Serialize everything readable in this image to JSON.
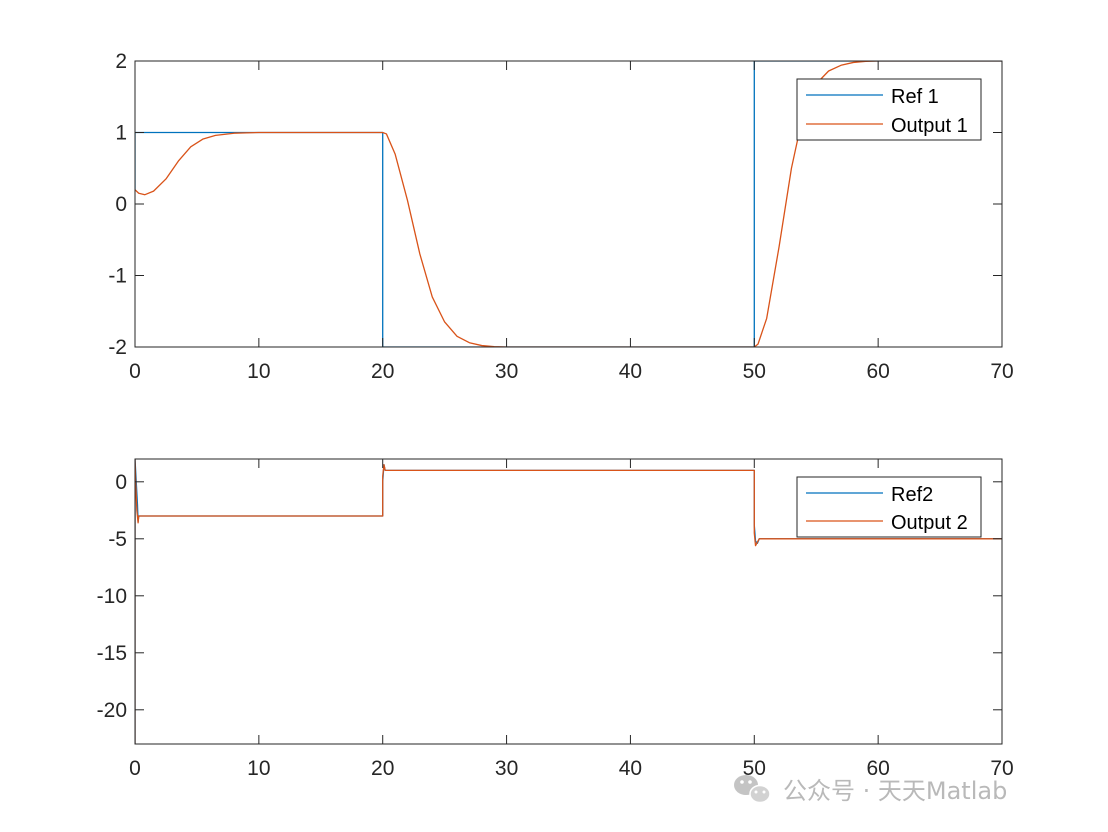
{
  "chart_data": [
    {
      "type": "line",
      "xlim": [
        0,
        70
      ],
      "ylim": [
        -2,
        2
      ],
      "xticks": [
        0,
        10,
        20,
        30,
        40,
        50,
        60,
        70
      ],
      "yticks": [
        -2,
        -1,
        0,
        1,
        2
      ],
      "xtick_labels": [
        "0",
        "10",
        "20",
        "30",
        "40",
        "50",
        "60",
        "70"
      ],
      "ytick_labels": [
        "-2",
        "-1",
        "0",
        "1",
        "2"
      ],
      "legend": {
        "location": "top-right",
        "entries": [
          "Ref 1",
          "Output 1"
        ]
      },
      "series": [
        {
          "name": "Ref 1",
          "color": "#0072bd",
          "x": [
            0,
            0,
            20,
            20,
            50,
            50,
            70
          ],
          "y": [
            0.2,
            1,
            1,
            -2,
            -2,
            2,
            2
          ]
        },
        {
          "name": "Output 1",
          "color": "#d95319",
          "x": [
            0,
            0.3,
            0.8,
            1.5,
            2.5,
            3.5,
            4.5,
            5.5,
            6.5,
            8,
            10,
            13,
            19,
            20,
            20.3,
            21,
            22,
            23,
            24,
            25,
            26,
            27,
            28,
            29,
            30,
            35,
            45,
            50,
            50.3,
            51,
            52,
            53,
            54,
            55,
            56,
            57,
            58,
            59,
            60,
            65,
            70
          ],
          "y": [
            0.2,
            0.15,
            0.13,
            0.18,
            0.35,
            0.6,
            0.8,
            0.91,
            0.96,
            0.99,
            1,
            1,
            1,
            1,
            0.98,
            0.7,
            0.05,
            -0.7,
            -1.3,
            -1.65,
            -1.85,
            -1.94,
            -1.98,
            -1.995,
            -2,
            -2,
            -2,
            -2,
            -1.96,
            -1.6,
            -0.6,
            0.5,
            1.3,
            1.68,
            1.86,
            1.94,
            1.98,
            1.995,
            2,
            2,
            2
          ]
        }
      ]
    },
    {
      "type": "line",
      "xlim": [
        0,
        70
      ],
      "ylim": [
        -23,
        2
      ],
      "xticks": [
        0,
        10,
        20,
        30,
        40,
        50,
        60,
        70
      ],
      "yticks": [
        -20,
        -15,
        -10,
        -5,
        0
      ],
      "xtick_labels": [
        "0",
        "10",
        "20",
        "30",
        "40",
        "50",
        "60",
        "70"
      ],
      "ytick_labels": [
        "-20",
        "-15",
        "-10",
        "-5",
        "0"
      ],
      "legend": {
        "location": "top-right",
        "entries": [
          "Ref2",
          "Output 2"
        ]
      },
      "series": [
        {
          "name": "Ref2",
          "color": "#0072bd",
          "x": [
            0,
            0,
            0.1,
            0.2,
            0.25,
            0.3,
            0.4,
            20,
            20,
            20.1,
            20.2,
            50,
            50,
            50.1,
            50.25,
            50.4,
            70
          ],
          "y": [
            -23,
            2,
            0,
            -2,
            -3.5,
            -3,
            -3,
            -3,
            0,
            1.5,
            1,
            1,
            -3.8,
            -5.2,
            -5.4,
            -5,
            -5
          ]
        },
        {
          "name": "Output 2",
          "color": "#d95319",
          "x": [
            0,
            0,
            0.05,
            0.15,
            0.25,
            0.3,
            0.4,
            20,
            20,
            20.1,
            20.2,
            50,
            50,
            50.1,
            50.25,
            50.4,
            70
          ],
          "y": [
            -23,
            2,
            0,
            -2.5,
            -3.6,
            -3,
            -3,
            -3,
            0.5,
            1.5,
            1,
            1,
            -4.5,
            -5.6,
            -5.3,
            -5,
            -5
          ]
        }
      ]
    }
  ],
  "watermark": {
    "icon": "wechat-icon",
    "text": "公众号 · 天天Matlab"
  },
  "colors": {
    "axis": "#262626",
    "background": "#ffffff"
  }
}
